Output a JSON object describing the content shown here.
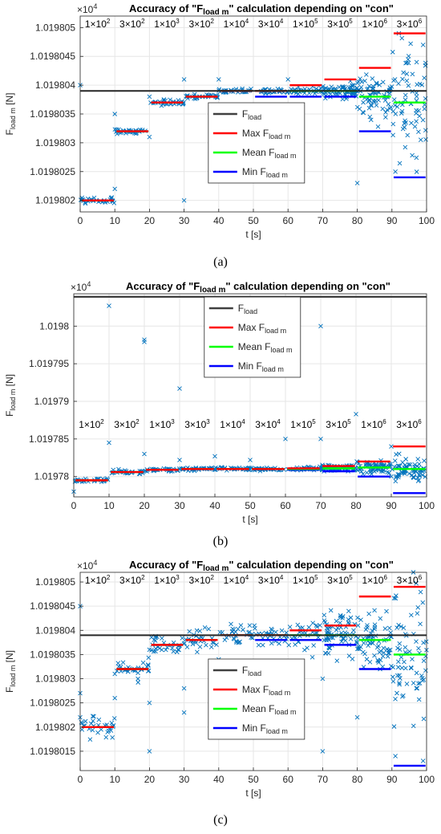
{
  "figure": {
    "sublabels": [
      "(a)",
      "(b)",
      "(c)"
    ]
  },
  "chart_data": [
    {
      "type": "scatter",
      "panel": "a",
      "title": "Accuracy of \"F_load m\" calculation depending on \"con\"",
      "title_parts": {
        "pre": "Accuracy of \"F",
        "sub": "load m",
        "post": "\" calculation depending on \"con\""
      },
      "exponent_label": "×10",
      "exponent_power": "4",
      "xlabel": "t [s]",
      "ylabel": "F_load m [N]",
      "ylabel_parts": {
        "main": "F",
        "sub": "load m",
        "post": " [N]"
      },
      "xlim": [
        0,
        100
      ],
      "ylim": [
        1.0198018,
        1.0198052
      ],
      "xticks": [
        "0",
        "10",
        "20",
        "30",
        "40",
        "50",
        "60",
        "70",
        "80",
        "90",
        "100"
      ],
      "yticks": [
        {
          "v": 1.019802,
          "label": "1.019802"
        },
        {
          "v": 1.0198025,
          "label": "1.0198025"
        },
        {
          "v": 1.019803,
          "label": "1.019803"
        },
        {
          "v": 1.0198035,
          "label": "1.0198035"
        },
        {
          "v": 1.019804,
          "label": "1.019804"
        },
        {
          "v": 1.0198045,
          "label": "1.0198045"
        },
        {
          "v": 1.019805,
          "label": "1.019805"
        }
      ],
      "grid": true,
      "legend_position": "center-bottom",
      "con_labels": [
        {
          "m": "1×10",
          "p": "2"
        },
        {
          "m": "3×10",
          "p": "2"
        },
        {
          "m": "1×10",
          "p": "3"
        },
        {
          "m": "3×10",
          "p": "2"
        },
        {
          "m": "1×10",
          "p": "4"
        },
        {
          "m": "3×10",
          "p": "4"
        },
        {
          "m": "1×10",
          "p": "5"
        },
        {
          "m": "3×10",
          "p": "5"
        },
        {
          "m": "1×10",
          "p": "6"
        },
        {
          "m": "3×10",
          "p": "6"
        }
      ],
      "f_load": 1.0198039,
      "segments_max": [
        1.019802,
        1.0198032,
        1.0198037,
        1.0198038,
        1.0198039,
        1.0198039,
        1.019804,
        1.0198041,
        1.0198043,
        1.0198049
      ],
      "segments_mean": [
        1.019802,
        1.0198032,
        1.0198037,
        1.0198038,
        1.0198039,
        1.0198039,
        1.0198039,
        1.0198039,
        1.0198038,
        1.0198037
      ],
      "segments_min": [
        1.019802,
        1.0198032,
        1.0198037,
        1.0198038,
        1.0198039,
        1.0198038,
        1.0198038,
        1.0198038,
        1.0198032,
        1.0198024
      ],
      "spread": [
        5e-08,
        5e-08,
        5e-08,
        4e-08,
        4e-08,
        5e-08,
        6e-08,
        1.2e-07,
        4e-07,
        9e-07
      ],
      "outliers": [
        [
          0,
          1.019804
        ],
        [
          10,
          1.0198035
        ],
        [
          10,
          1.0198022
        ],
        [
          20,
          1.0198038
        ],
        [
          20,
          1.0198031
        ],
        [
          30,
          1.0198041
        ],
        [
          30,
          1.019802
        ],
        [
          40,
          1.0198041
        ],
        [
          60,
          1.0198041
        ],
        [
          80,
          1.0198023
        ],
        [
          91,
          1.0198025
        ],
        [
          92,
          1.0198049
        ],
        [
          99,
          1.0198047
        ]
      ],
      "legend": [
        {
          "main": "F",
          "sub": "load",
          "color": "#404040"
        },
        {
          "main": "Max F",
          "sub": "load m",
          "color": "#ff0000"
        },
        {
          "main": "Mean F",
          "sub": "load m",
          "color": "#00ff00"
        },
        {
          "main": "Min F",
          "sub": "load m",
          "color": "#0000ff"
        }
      ],
      "marker_color": "#0072bd"
    },
    {
      "type": "scatter",
      "panel": "b",
      "title": "Accuracy of \"F_load m\" calculation depending on \"con\"",
      "title_parts": {
        "pre": "Accuracy of \"F",
        "sub": "load m",
        "post": "\" calculation depending on \"con\""
      },
      "exponent_label": "×10",
      "exponent_power": "4",
      "xlabel": "t [s]",
      "ylabel": "F_load m [N]",
      "ylabel_parts": {
        "main": "F",
        "sub": "load m",
        "post": " [N]"
      },
      "xlim": [
        0,
        100
      ],
      "ylim": [
        1.0197773,
        1.0198043
      ],
      "xticks": [
        "0",
        "10",
        "20",
        "30",
        "40",
        "50",
        "60",
        "70",
        "80",
        "90",
        "100"
      ],
      "yticks": [
        {
          "v": 1.01978,
          "label": "1.01978"
        },
        {
          "v": 1.019785,
          "label": "1.019785"
        },
        {
          "v": 1.01979,
          "label": "1.01979"
        },
        {
          "v": 1.019795,
          "label": "1.019795"
        },
        {
          "v": 1.0198,
          "label": "1.0198"
        }
      ],
      "grid": true,
      "legend_position": "top-center",
      "con_labels": [
        {
          "m": "1×10",
          "p": "2"
        },
        {
          "m": "3×10",
          "p": "2"
        },
        {
          "m": "1×10",
          "p": "3"
        },
        {
          "m": "3×10",
          "p": "3"
        },
        {
          "m": "1×10",
          "p": "4"
        },
        {
          "m": "3×10",
          "p": "4"
        },
        {
          "m": "1×10",
          "p": "5"
        },
        {
          "m": "3×10",
          "p": "5"
        },
        {
          "m": "1×10",
          "p": "6"
        },
        {
          "m": "3×10",
          "p": "6"
        }
      ],
      "f_load": 1.0198039,
      "segments_max": [
        1.0197795,
        1.0197806,
        1.0197809,
        1.019781,
        1.019781,
        1.019781,
        1.0197811,
        1.0197814,
        1.019782,
        1.019784
      ],
      "segments_mean": [
        1.0197795,
        1.0197806,
        1.0197809,
        1.019781,
        1.019781,
        1.019781,
        1.019781,
        1.0197811,
        1.0197812,
        1.019781
      ],
      "segments_min": [
        1.0197795,
        1.0197806,
        1.0197809,
        1.019781,
        1.019781,
        1.019781,
        1.0197809,
        1.0197807,
        1.01978,
        1.0197778
      ],
      "spread": [
        3e-07,
        3e-07,
        3e-07,
        2e-07,
        2e-07,
        2e-07,
        3e-07,
        4e-07,
        7e-07,
        1.6e-06
      ],
      "outliers": [
        [
          0,
          1.019778
        ],
        [
          10,
          1.0198027
        ],
        [
          10,
          1.0197845
        ],
        [
          20,
          1.0197982
        ],
        [
          20,
          1.0197979
        ],
        [
          20,
          1.019783
        ],
        [
          30,
          1.0197917
        ],
        [
          30,
          1.0197822
        ],
        [
          40,
          1.0197827
        ],
        [
          50,
          1.0197822
        ],
        [
          60,
          1.019785
        ],
        [
          70,
          1.0198
        ],
        [
          70,
          1.019785
        ],
        [
          80,
          1.0197883
        ],
        [
          90,
          1.019784
        ]
      ],
      "legend": [
        {
          "main": "F",
          "sub": "load",
          "color": "#404040"
        },
        {
          "main": "Max F",
          "sub": "load m",
          "color": "#ff0000"
        },
        {
          "main": "Mean F",
          "sub": "load m",
          "color": "#00ff00"
        },
        {
          "main": "Min F",
          "sub": "load m",
          "color": "#0000ff"
        }
      ],
      "marker_color": "#0072bd"
    },
    {
      "type": "scatter",
      "panel": "c",
      "title": "Accuracy of \"F_load m\" calculation depending on \"con\"",
      "title_parts": {
        "pre": "Accuracy of \"F",
        "sub": "load m",
        "post": "\" calculation depending on \"con\""
      },
      "exponent_label": "×10",
      "exponent_power": "4",
      "xlabel": "t [s]",
      "ylabel": "F_load m [N]",
      "ylabel_parts": {
        "main": "F",
        "sub": "load m",
        "post": " [N]"
      },
      "xlim": [
        0,
        100
      ],
      "ylim": [
        1.0198011,
        1.0198052
      ],
      "xticks": [
        "0",
        "10",
        "20",
        "30",
        "40",
        "50",
        "60",
        "70",
        "80",
        "90",
        "100"
      ],
      "yticks": [
        {
          "v": 1.0198015,
          "label": "1.0198015"
        },
        {
          "v": 1.019802,
          "label": "1.019802"
        },
        {
          "v": 1.0198025,
          "label": "1.0198025"
        },
        {
          "v": 1.019803,
          "label": "1.019803"
        },
        {
          "v": 1.0198035,
          "label": "1.0198035"
        },
        {
          "v": 1.019804,
          "label": "1.019804"
        },
        {
          "v": 1.0198045,
          "label": "1.0198045"
        },
        {
          "v": 1.019805,
          "label": "1.019805"
        }
      ],
      "grid": true,
      "legend_position": "center-bottom",
      "con_labels": [
        {
          "m": "1×10",
          "p": "2"
        },
        {
          "m": "3×10",
          "p": "2"
        },
        {
          "m": "1×10",
          "p": "3"
        },
        {
          "m": "3×10",
          "p": "2"
        },
        {
          "m": "1×10",
          "p": "4"
        },
        {
          "m": "3×10",
          "p": "4"
        },
        {
          "m": "1×10",
          "p": "5"
        },
        {
          "m": "3×10",
          "p": "5"
        },
        {
          "m": "1×10",
          "p": "6"
        },
        {
          "m": "3×10",
          "p": "6"
        }
      ],
      "f_load": 1.0198039,
      "segments_max": [
        1.019802,
        1.0198032,
        1.0198037,
        1.0198038,
        1.0198039,
        1.0198039,
        1.019804,
        1.0198041,
        1.0198047,
        1.0198049
      ],
      "segments_mean": [
        1.019802,
        1.0198032,
        1.0198037,
        1.0198038,
        1.0198039,
        1.0198039,
        1.0198039,
        1.0198039,
        1.0198038,
        1.0198035
      ],
      "segments_min": [
        1.019802,
        1.0198032,
        1.0198037,
        1.0198038,
        1.0198039,
        1.0198038,
        1.0198038,
        1.0198037,
        1.0198032,
        1.0198012
      ],
      "spread": [
        2e-07,
        2e-07,
        2e-07,
        2e-07,
        2e-07,
        2e-07,
        3e-07,
        4e-07,
        6e-07,
        1.3e-06
      ],
      "outliers": [
        [
          0,
          1.0198045
        ],
        [
          0,
          1.0198027
        ],
        [
          0,
          1.0198022
        ],
        [
          10,
          1.0198031
        ],
        [
          10,
          1.0198026
        ],
        [
          20,
          1.0198036
        ],
        [
          20,
          1.0198025
        ],
        [
          20,
          1.0198015
        ],
        [
          30,
          1.0198028
        ],
        [
          30,
          1.0198023
        ],
        [
          40,
          1.0198034
        ],
        [
          50,
          1.0198033
        ],
        [
          60,
          1.0198032
        ],
        [
          60,
          1.0198026
        ],
        [
          70,
          1.019803
        ],
        [
          70,
          1.0198015
        ],
        [
          80,
          1.0198022
        ],
        [
          91,
          1.0198014
        ],
        [
          99,
          1.0198013
        ]
      ],
      "legend": [
        {
          "main": "F",
          "sub": "load",
          "color": "#404040"
        },
        {
          "main": "Max F",
          "sub": "load m",
          "color": "#ff0000"
        },
        {
          "main": "Mean F",
          "sub": "load m",
          "color": "#00ff00"
        },
        {
          "main": "Min F",
          "sub": "load m",
          "color": "#0000ff"
        }
      ],
      "marker_color": "#0072bd"
    }
  ]
}
